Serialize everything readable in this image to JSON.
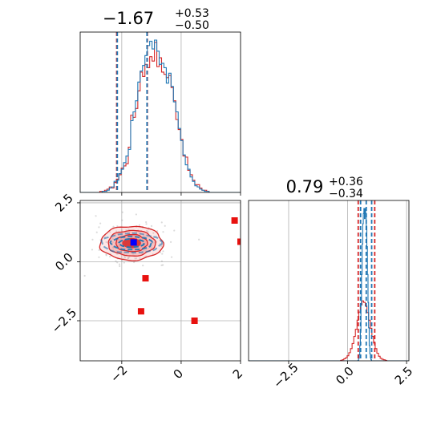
{
  "chart_data": [
    {
      "panel": "top-left",
      "type": "histogram",
      "title": {
        "main": "−1.67",
        "sup": "+0.53",
        "sub": "−0.50"
      },
      "xlim": [
        -3.4,
        2.0
      ],
      "x_ticks": [
        -2,
        0,
        2
      ],
      "y_ticks": [],
      "grid": true,
      "colors": {
        "red": "#d62728",
        "blue": "#1f77b4"
      },
      "series": [
        {
          "color": "#d62728",
          "bin_start": -3.3,
          "bin_width": 0.08,
          "counts": [
            0,
            0,
            0,
            0,
            0,
            0,
            0,
            1,
            1,
            2,
            3,
            5,
            4,
            9,
            12,
            16,
            22,
            24,
            26,
            41,
            70,
            68,
            76,
            92,
            109,
            105,
            116,
            113,
            123,
            119,
            136,
            114,
            122,
            109,
            107,
            104,
            106,
            95,
            83,
            66,
            57,
            48,
            33,
            32,
            20,
            16,
            11,
            7,
            7,
            4,
            2,
            2,
            1,
            0,
            0,
            0
          ]
        },
        {
          "color": "#1f77b4",
          "bin_start": -3.3,
          "bin_width": 0.08,
          "counts": [
            0,
            0,
            0,
            0,
            0,
            0,
            0,
            0,
            1,
            1,
            2,
            4,
            5,
            10,
            11,
            17,
            21,
            27,
            33,
            39,
            65,
            73,
            83,
            100,
            110,
            115,
            124,
            133,
            137,
            130,
            138,
            128,
            116,
            117,
            113,
            99,
            108,
            96,
            82,
            73,
            58,
            47,
            34,
            25,
            21,
            14,
            10,
            6,
            5,
            3,
            2,
            1,
            1,
            0,
            0,
            0
          ]
        }
      ],
      "vlines": [
        {
          "x": -2.17,
          "color": "#d62728"
        },
        {
          "x": -1.14,
          "color": "#d62728"
        },
        {
          "x": -2.15,
          "color": "#1f77b4"
        },
        {
          "x": -1.15,
          "color": "#1f77b4"
        }
      ]
    },
    {
      "panel": "bottom-left",
      "type": "scatter",
      "xlim": [
        -3.4,
        2.0
      ],
      "ylim": [
        -4.2,
        2.6
      ],
      "x_ticks": [
        -2,
        0,
        2
      ],
      "x_tick_labels": [
        "−2",
        "0",
        "2"
      ],
      "y_ticks": [
        2.5,
        0.0,
        -2.5
      ],
      "y_tick_labels": [
        "2.5",
        "0.0",
        "−2.5"
      ],
      "grid": true,
      "red_points": [
        [
          -1.6,
          0.85
        ],
        [
          1.8,
          1.75
        ],
        [
          2.0,
          0.85
        ],
        [
          -1.2,
          -0.7
        ],
        [
          -1.35,
          -2.1
        ],
        [
          0.45,
          -2.5
        ]
      ],
      "blue_points": [
        [
          -1.6,
          0.82
        ]
      ],
      "contours": {
        "center": [
          -1.67,
          0.79
        ],
        "sx": 0.53,
        "sy": 0.36
      }
    },
    {
      "panel": "bottom-right",
      "type": "histogram",
      "title": {
        "main": "0.79",
        "sup": "+0.36",
        "sub": "−0.34"
      },
      "xlim": [
        -4.2,
        2.6
      ],
      "x_ticks": [
        -2.5,
        0.0,
        2.5
      ],
      "x_tick_labels": [
        "−2.5",
        "0.0",
        "2.5"
      ],
      "grid": true,
      "series": [
        {
          "color": "#d62728",
          "bin_start": -0.3,
          "bin_width": 0.07,
          "counts": [
            1,
            2,
            4,
            6,
            10,
            16,
            24,
            34,
            48,
            62,
            80,
            96,
            110,
            118,
            115,
            108,
            95,
            80,
            64,
            48,
            35,
            24,
            15,
            9,
            5,
            3,
            2,
            1
          ]
        },
        {
          "color": "#1f77b4",
          "bin_start": 0.44,
          "bin_width": 0.025,
          "counts": [
            1,
            5,
            12,
            30,
            60,
            110,
            170,
            230,
            270,
            290,
            300,
            280,
            300,
            290,
            265,
            225,
            170,
            115,
            65,
            30,
            14,
            6,
            2
          ]
        }
      ],
      "vlines": [
        {
          "x": 0.45,
          "color": "#d62728"
        },
        {
          "x": 1.15,
          "color": "#d62728"
        },
        {
          "x": 0.55,
          "color": "#1f77b4"
        },
        {
          "x": 0.79,
          "color": "#1f77b4"
        },
        {
          "x": 1.02,
          "color": "#1f77b4"
        }
      ]
    }
  ]
}
